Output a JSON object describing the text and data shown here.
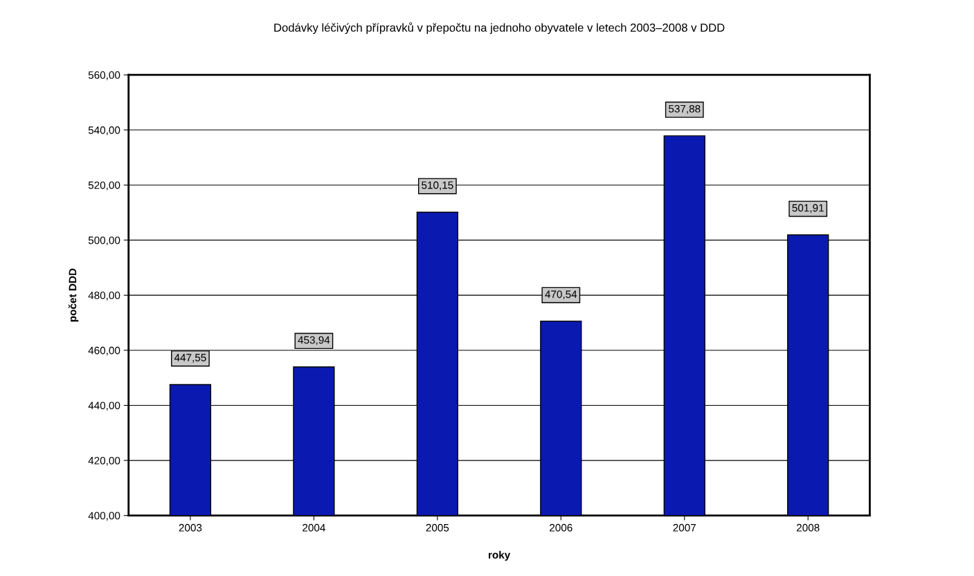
{
  "chart_data": {
    "type": "bar",
    "title": "Dodávky léčivých přípravků v přepočtu na jednoho obyvatele v letech 2003–2008 v DDD",
    "xlabel": "roky",
    "ylabel": "počet DDD",
    "categories": [
      "2003",
      "2004",
      "2005",
      "2006",
      "2007",
      "2008"
    ],
    "values": [
      447.55,
      453.94,
      510.15,
      470.54,
      537.88,
      501.91
    ],
    "value_labels": [
      "447,55",
      "453,94",
      "510,15",
      "470,54",
      "537,88",
      "501,91"
    ],
    "color": "#0a1ab0",
    "ylim": [
      400,
      560
    ],
    "yticks": [
      {
        "value": 400,
        "label": "400,00"
      },
      {
        "value": 420,
        "label": "420,00"
      },
      {
        "value": 440,
        "label": "440,00"
      },
      {
        "value": 460,
        "label": "460,00"
      },
      {
        "value": 480,
        "label": "480,00"
      },
      {
        "value": 500,
        "label": "500,00"
      },
      {
        "value": 520,
        "label": "520,00"
      },
      {
        "value": 540,
        "label": "540,00"
      },
      {
        "value": 560,
        "label": "560,00"
      }
    ],
    "grid": "y",
    "legend": false
  }
}
